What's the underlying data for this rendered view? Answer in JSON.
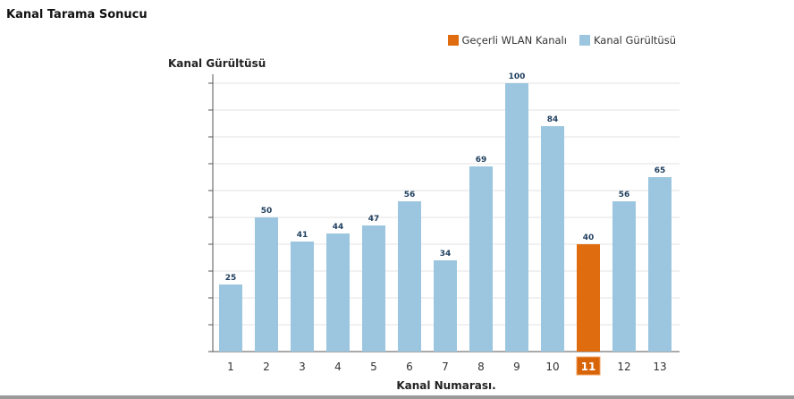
{
  "title": "Kanal Tarama Sonucu",
  "chart_data": {
    "type": "bar",
    "ylabel": "Kanal Gürültüsü",
    "xlabel": "Kanal Numarası.",
    "categories": [
      "1",
      "2",
      "3",
      "4",
      "5",
      "6",
      "7",
      "8",
      "9",
      "10",
      "11",
      "12",
      "13"
    ],
    "values": [
      25,
      50,
      41,
      44,
      47,
      56,
      34,
      69,
      100,
      84,
      40,
      56,
      65
    ],
    "highlighted": "11",
    "ylim": [
      0,
      100
    ],
    "grid": true,
    "legend_position": "top-right",
    "series": [
      {
        "name": "Geçerli WLAN Kanalı",
        "color": "#e06c10"
      },
      {
        "name": "Kanal Gürültüsü",
        "color": "#9cc6e0"
      }
    ]
  }
}
